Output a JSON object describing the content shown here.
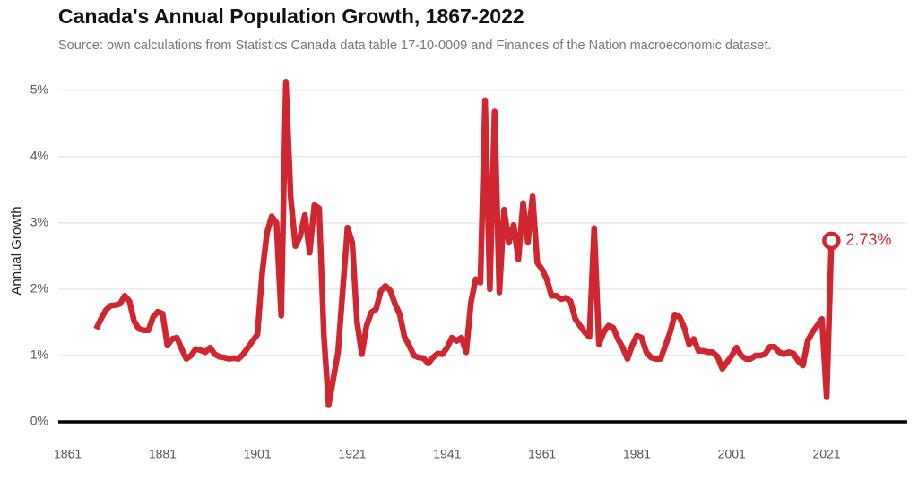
{
  "chart_data": {
    "type": "line",
    "title": "Canada's Annual Population Growth, 1867-2022",
    "subtitle": "Source: own calculations from Statistics Canada data table 17-10-0009 and Finances of the Nation macroeconomic dataset.",
    "y_label": "Annual Growth",
    "color": "#d0262f",
    "grid": true,
    "xlim": [
      1859,
      2038
    ],
    "ylim": [
      0,
      5.2
    ],
    "xticks": [
      1861,
      1881,
      1901,
      1921,
      1941,
      1961,
      1981,
      2001,
      2021
    ],
    "yticks": [
      {
        "value": 0,
        "label": "0%"
      },
      {
        "value": 1,
        "label": "1%"
      },
      {
        "value": 2,
        "label": "2%"
      },
      {
        "value": 3,
        "label": "3%"
      },
      {
        "value": 4,
        "label": "4%"
      },
      {
        "value": 5,
        "label": "5%"
      }
    ],
    "x": [
      1867,
      1868,
      1869,
      1870,
      1871,
      1872,
      1873,
      1874,
      1875,
      1876,
      1877,
      1878,
      1879,
      1880,
      1881,
      1882,
      1883,
      1884,
      1885,
      1886,
      1887,
      1888,
      1889,
      1890,
      1891,
      1892,
      1893,
      1894,
      1895,
      1896,
      1897,
      1898,
      1899,
      1900,
      1901,
      1902,
      1903,
      1904,
      1905,
      1906,
      1907,
      1908,
      1909,
      1910,
      1911,
      1912,
      1913,
      1914,
      1915,
      1916,
      1917,
      1918,
      1919,
      1920,
      1921,
      1922,
      1923,
      1924,
      1925,
      1926,
      1927,
      1928,
      1929,
      1930,
      1931,
      1932,
      1933,
      1934,
      1935,
      1936,
      1937,
      1938,
      1939,
      1940,
      1941,
      1942,
      1943,
      1944,
      1945,
      1946,
      1947,
      1948,
      1949,
      1950,
      1951,
      1952,
      1953,
      1954,
      1955,
      1956,
      1957,
      1958,
      1959,
      1960,
      1961,
      1962,
      1963,
      1964,
      1965,
      1966,
      1967,
      1968,
      1969,
      1970,
      1971,
      1972,
      1973,
      1974,
      1975,
      1976,
      1977,
      1978,
      1979,
      1980,
      1981,
      1982,
      1983,
      1984,
      1985,
      1986,
      1987,
      1988,
      1989,
      1990,
      1991,
      1992,
      1993,
      1994,
      1995,
      1996,
      1997,
      1998,
      1999,
      2000,
      2001,
      2002,
      2003,
      2004,
      2005,
      2006,
      2007,
      2008,
      2009,
      2010,
      2011,
      2012,
      2013,
      2014,
      2015,
      2016,
      2017,
      2018,
      2019,
      2020,
      2021,
      2022
    ],
    "values": [
      1.4,
      1.55,
      1.68,
      1.75,
      1.76,
      1.78,
      1.9,
      1.82,
      1.52,
      1.4,
      1.38,
      1.38,
      1.58,
      1.66,
      1.63,
      1.15,
      1.25,
      1.27,
      1.1,
      0.95,
      1.0,
      1.1,
      1.08,
      1.05,
      1.12,
      1.02,
      0.98,
      0.97,
      0.95,
      0.96,
      0.95,
      1.02,
      1.12,
      1.22,
      1.32,
      2.25,
      2.85,
      3.1,
      3.0,
      1.6,
      5.13,
      3.4,
      2.65,
      2.8,
      3.12,
      2.55,
      3.27,
      3.22,
      1.3,
      0.25,
      0.65,
      1.05,
      2.0,
      2.93,
      2.7,
      1.5,
      1.02,
      1.45,
      1.65,
      1.7,
      1.97,
      2.05,
      1.98,
      1.78,
      1.62,
      1.28,
      1.15,
      1.0,
      0.97,
      0.96,
      0.88,
      0.97,
      1.03,
      1.02,
      1.12,
      1.27,
      1.22,
      1.27,
      1.05,
      1.8,
      2.15,
      2.1,
      4.85,
      2.0,
      4.68,
      1.95,
      3.2,
      2.7,
      2.97,
      2.45,
      3.3,
      2.7,
      3.4,
      2.4,
      2.3,
      2.15,
      1.9,
      1.9,
      1.85,
      1.87,
      1.82,
      1.55,
      1.45,
      1.35,
      1.28,
      2.92,
      1.17,
      1.35,
      1.45,
      1.42,
      1.25,
      1.12,
      0.95,
      1.15,
      1.3,
      1.27,
      1.05,
      0.97,
      0.95,
      0.95,
      1.15,
      1.35,
      1.62,
      1.58,
      1.42,
      1.17,
      1.25,
      1.07,
      1.07,
      1.05,
      1.05,
      0.98,
      0.8,
      0.9,
      1.0,
      1.12,
      1.0,
      0.95,
      0.95,
      1.0,
      1.0,
      1.02,
      1.13,
      1.13,
      1.05,
      1.02,
      1.05,
      1.03,
      0.92,
      0.85,
      1.22,
      1.35,
      1.45,
      1.55,
      0.37,
      2.73
    ],
    "value_labels": [
      null,
      null,
      null,
      null,
      null,
      null,
      null,
      null,
      null,
      null,
      null,
      null,
      null,
      null,
      null,
      null,
      null,
      null,
      null,
      null,
      null,
      null,
      null,
      null,
      null,
      null,
      null,
      null,
      null,
      null,
      null,
      null,
      null,
      null,
      null,
      null,
      null,
      null,
      null,
      null,
      null,
      null,
      null,
      null,
      null,
      null,
      null,
      null,
      null,
      null,
      null,
      null,
      null,
      null,
      null,
      null,
      null,
      null,
      null,
      null,
      null,
      null,
      null,
      null,
      null,
      null,
      null,
      null,
      null,
      null,
      null,
      null,
      null,
      null,
      null,
      null,
      null,
      null,
      null,
      null,
      null,
      null,
      null,
      null,
      null,
      null,
      null,
      null,
      null,
      null,
      null,
      null,
      null,
      null,
      null,
      null,
      null,
      null,
      null,
      null,
      null,
      null,
      null,
      null,
      null,
      null,
      null,
      null,
      null,
      null,
      null,
      null,
      null,
      null,
      null,
      null,
      null,
      null,
      null,
      null,
      null,
      null,
      null,
      null,
      null,
      null,
      null,
      null,
      null,
      null,
      null,
      null,
      null,
      null,
      null,
      null,
      null,
      null,
      null,
      null,
      null,
      null,
      null,
      null,
      null,
      null,
      null,
      null,
      null,
      null,
      null,
      null,
      null,
      null,
      null,
      "2.73%"
    ]
  }
}
